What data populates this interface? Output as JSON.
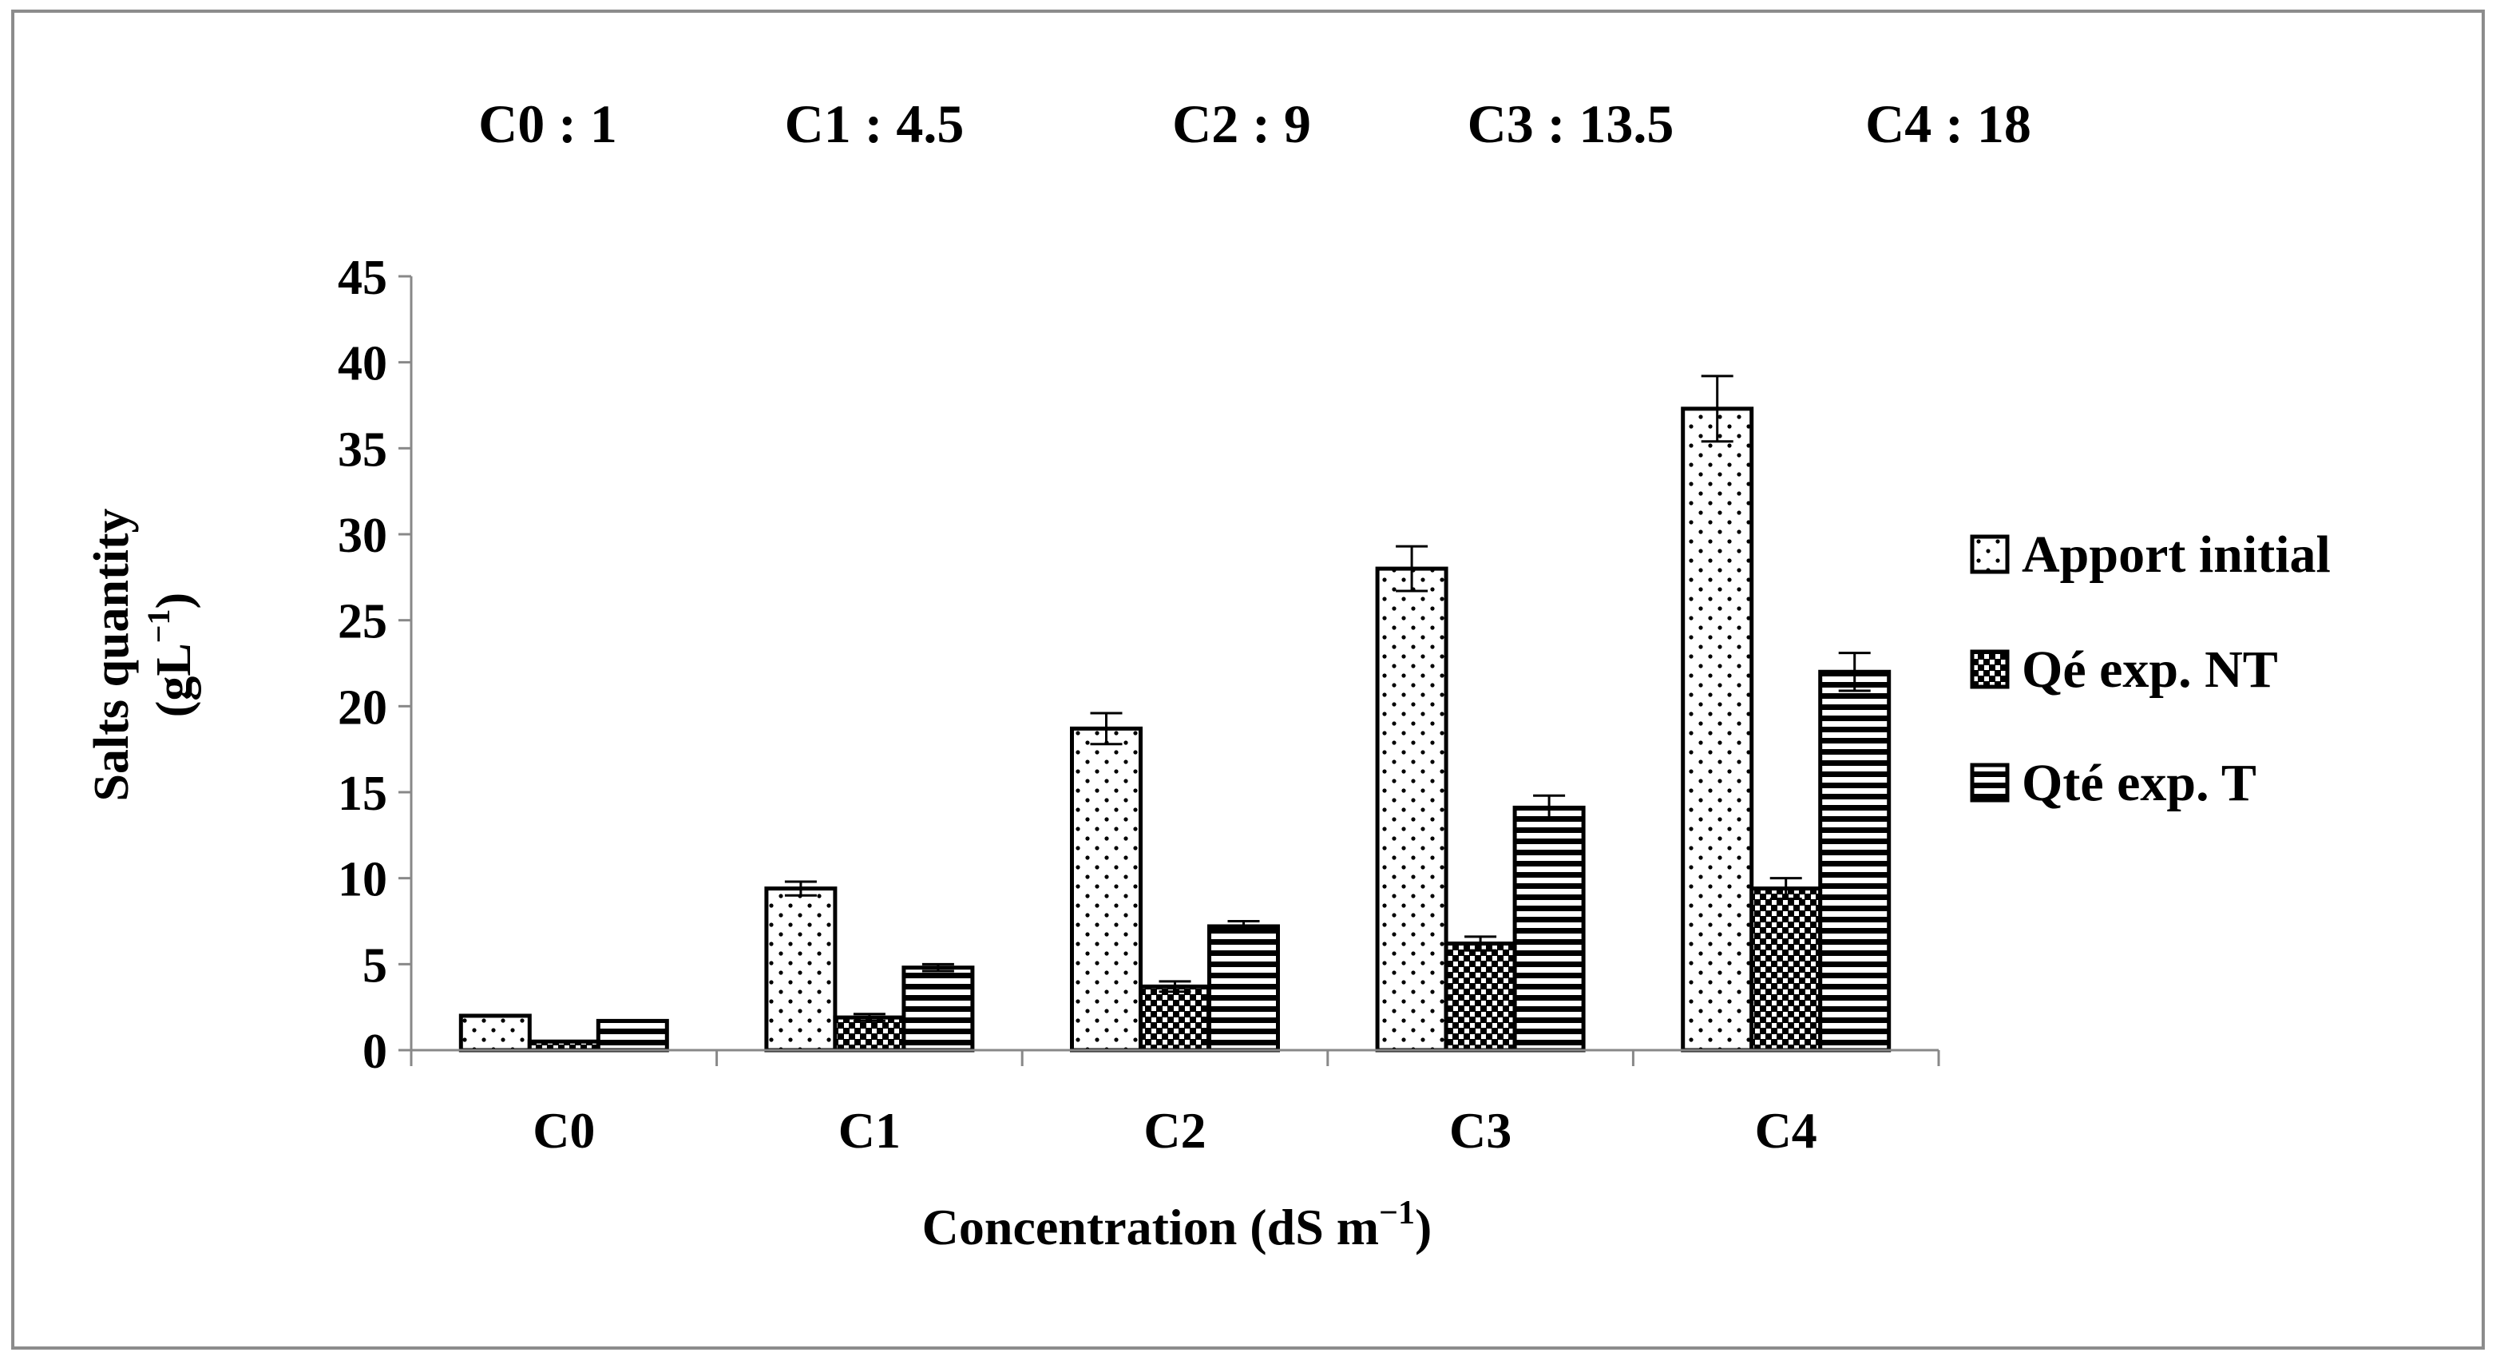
{
  "chart_data": {
    "type": "bar",
    "title": "",
    "concentration_notes": [
      "C0 : 1",
      "C1 : 4.5",
      "C2 : 9",
      "C3 : 13.5",
      "C4 : 18"
    ],
    "categories": [
      "C0",
      "C1",
      "C2",
      "C3",
      "C4"
    ],
    "xlabel_main": "Concentration (dS m",
    "xlabel_sup": "−1",
    "xlabel_close": ")",
    "ylabel_line1": "Salts quantity",
    "ylabel_line2_main": "(gL",
    "ylabel_line2_sup": "−1",
    "ylabel_line2_close": ")",
    "ylim": [
      0,
      45
    ],
    "yticks": [
      "0",
      "5",
      "10",
      "15",
      "20",
      "25",
      "30",
      "35",
      "40",
      "45"
    ],
    "ytick_values": [
      0,
      5,
      10,
      15,
      20,
      25,
      30,
      35,
      40,
      45
    ],
    "grid": false,
    "legend_position": "right",
    "series": [
      {
        "name": "Apport initial",
        "pattern": "dots",
        "values": [
          2,
          9.4,
          18.7,
          28,
          37.3
        ],
        "errors": [
          0,
          0.4,
          0.9,
          1.3,
          1.9
        ]
      },
      {
        "name": "Qé exp.  NT",
        "pattern": "checker",
        "values": [
          0.5,
          1.9,
          3.7,
          6.2,
          9.4
        ],
        "errors": [
          0,
          0.2,
          0.3,
          0.4,
          0.6
        ]
      },
      {
        "name": "Qté exp. T",
        "pattern": "hstripes",
        "values": [
          1.7,
          4.8,
          7.2,
          14.1,
          22
        ],
        "errors": [
          0,
          0.2,
          0.3,
          0.7,
          1.1
        ]
      }
    ]
  },
  "colors": {
    "ink": "#000000",
    "background": "#ffffff",
    "frame": "#8c8c8c",
    "axis": "#888888"
  }
}
